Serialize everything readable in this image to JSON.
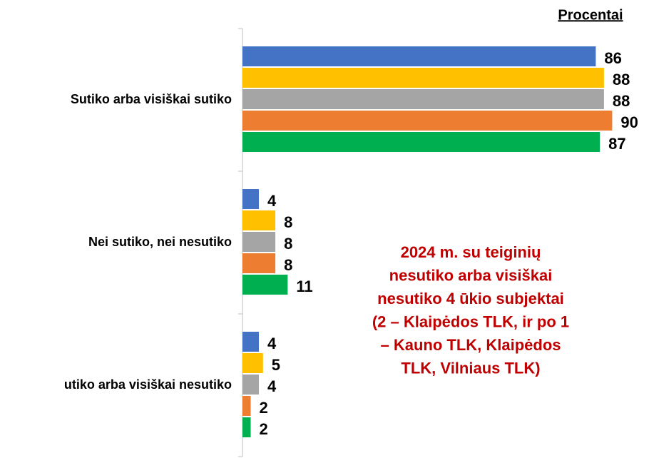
{
  "chart_data": {
    "type": "hbar",
    "unit_label": "Procentai",
    "categories": [
      "Sutiko arba visiškai sutiko",
      "Nei sutiko, nei nesutiko",
      "utiko arba visiškai nesutiko"
    ],
    "series": [
      {
        "color": "#4472c4",
        "values": [
          86,
          4,
          4
        ]
      },
      {
        "color": "#ffc000",
        "values": [
          88,
          8,
          5
        ]
      },
      {
        "color": "#a5a5a5",
        "values": [
          88,
          8,
          4
        ]
      },
      {
        "color": "#ed7d31",
        "values": [
          90,
          8,
          2
        ]
      },
      {
        "color": "#00b050",
        "values": [
          87,
          11,
          2
        ]
      }
    ],
    "annotation": [
      "2024 m.  su teiginių",
      "nesutiko arba visiškai",
      "nesutiko 4 ūkio subjektai",
      "(2 – Klaipėdos TLK, ir po 1",
      "– Kauno TLK, Klaipėdos",
      "TLK, Vilniaus TLK)"
    ]
  }
}
